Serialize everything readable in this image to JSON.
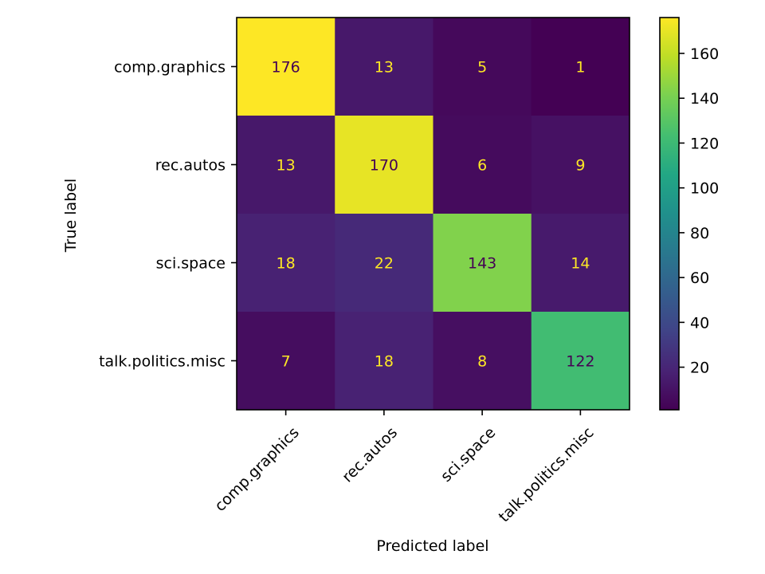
{
  "chart_data": {
    "type": "heatmap",
    "title": "",
    "xlabel": "Predicted label",
    "ylabel": "True label",
    "x_categories": [
      "comp.graphics",
      "rec.autos",
      "sci.space",
      "talk.politics.misc"
    ],
    "y_categories": [
      "comp.graphics",
      "rec.autos",
      "sci.space",
      "talk.politics.misc"
    ],
    "matrix": [
      [
        176,
        13,
        5,
        1
      ],
      [
        13,
        170,
        6,
        9
      ],
      [
        18,
        22,
        143,
        14
      ],
      [
        7,
        18,
        8,
        122
      ]
    ],
    "colormap": "viridis",
    "value_range": [
      1,
      176
    ],
    "colorbar_ticks": [
      20,
      40,
      60,
      80,
      100,
      120,
      140,
      160
    ],
    "text_color_light": "#fde725",
    "text_color_dark": "#440154"
  }
}
